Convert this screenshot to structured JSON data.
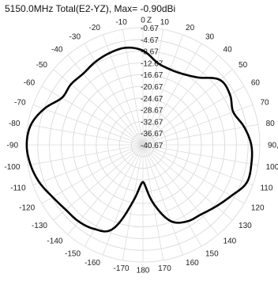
{
  "chart_data": {
    "type": "polar",
    "title": "5150.0MHz Total(E2-YZ), Max= -0.90dBi",
    "angle_unit": "deg",
    "angle_zero": "top",
    "angle_direction": "clockwise",
    "angle_ticks": [
      0,
      10,
      20,
      30,
      40,
      50,
      60,
      70,
      80,
      90,
      100,
      110,
      120,
      130,
      140,
      150,
      160,
      170,
      180,
      -170,
      -160,
      -150,
      -140,
      -130,
      -120,
      -110,
      -100,
      -90,
      -80,
      -70,
      -60,
      -50,
      -40,
      -30,
      -20,
      -10
    ],
    "angle_tick_labels": [
      "0",
      "10",
      "20",
      "30",
      "40",
      "50",
      "60",
      "70",
      "80",
      "90, Y",
      "100",
      "110",
      "120",
      "130",
      "140",
      "150",
      "160",
      "170",
      "180",
      "-170",
      "-160",
      "-150",
      "-140",
      "-130",
      "-120",
      "-110",
      "-100",
      "-90",
      "-80",
      "-70",
      "-60",
      "-50",
      "-40",
      "-30",
      "-20",
      "-10"
    ],
    "axis_name_at_zero": "Z",
    "r_ticks": [
      -0.67,
      -4.67,
      -8.67,
      -12.67,
      -16.67,
      -20.67,
      -24.67,
      -28.67,
      -32.67,
      -36.67,
      -40.67
    ],
    "r_tick_labels": [
      "-0.67",
      "-4.67",
      "-8.67",
      "-12.67",
      "-16.67",
      "-20.67",
      "-24.67",
      "-28.67",
      "-32.67",
      "-36.67",
      "-40.67"
    ],
    "rlim": [
      -40.67,
      -0.67
    ],
    "grid": true,
    "series": [
      {
        "theta": [
          0,
          10,
          20,
          30,
          40,
          50,
          60,
          70,
          80,
          90,
          100,
          110,
          120,
          130,
          140,
          150,
          160,
          170,
          180,
          -170,
          -160,
          -150,
          -140,
          -130,
          -120,
          -110,
          -100,
          -90,
          -80,
          -70,
          -60,
          -50,
          -40,
          -30,
          -20,
          -10
        ],
        "r": [
          -8.5,
          -12.2,
          -13.3,
          -12.8,
          -10.7,
          -6.2,
          -6.3,
          -7.8,
          -5.5,
          -3.6,
          -3.0,
          -2.9,
          -5.8,
          -8.0,
          -9.7,
          -10.5,
          -13.0,
          -20.5,
          -28.0,
          -21.0,
          -10.0,
          -7.5,
          -6.5,
          -6.2,
          -5.0,
          -3.0,
          -1.6,
          -0.9,
          -1.7,
          -4.7,
          -8.6,
          -8.5,
          -8.9,
          -8.0,
          -7.3,
          -7.0
        ]
      }
    ]
  }
}
